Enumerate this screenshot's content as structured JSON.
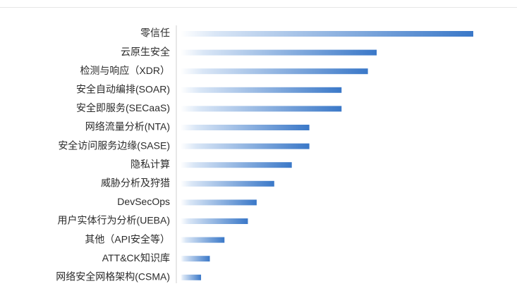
{
  "chart_data": {
    "type": "bar",
    "orientation": "horizontal",
    "categories": [
      "零信任",
      "云原生安全",
      "检测与响应（XDR）",
      "安全自动编排(SOAR)",
      "安全即服务(SECaaS)",
      "网络流量分析(NTA)",
      "安全访问服务边缘(SASE)",
      "隐私计算",
      "威胁分析及狩猎",
      "DevSecOps",
      "用户实体行为分析(UEBA)",
      "其他（API安全等）",
      "ATT&CK知识库",
      "网络安全网格架构(CSMA)"
    ],
    "values": [
      100,
      67,
      64,
      55,
      55,
      44,
      44,
      38,
      32,
      26,
      23,
      15,
      10,
      7
    ],
    "xlim": [
      0,
      100
    ],
    "grid": false,
    "legend": "none",
    "colors": {
      "bar_start": "#ffffff",
      "bar_end": "#3a78c8",
      "axis": "#d0d0d0"
    }
  }
}
